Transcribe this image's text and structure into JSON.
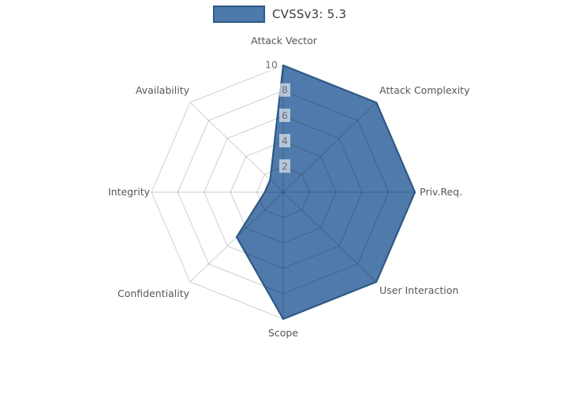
{
  "legend": {
    "label": "CVSSv3: 5.3",
    "swatch_color": "#4d79ab",
    "swatch_border_color": "#2e5984"
  },
  "chart_data": {
    "type": "radar",
    "title": "",
    "categories": [
      "Attack Vector",
      "Attack Complexity",
      "Priv.Req.",
      "User Interaction",
      "Scope",
      "Confidentiality",
      "Integrity",
      "Availability"
    ],
    "series": [
      {
        "name": "CVSSv3: 5.3",
        "values": [
          10,
          10,
          10,
          10,
          10,
          5,
          1.4,
          1.4
        ]
      }
    ],
    "radial_ticks": [
      2,
      4,
      6,
      8,
      10
    ],
    "radial_range": [
      0,
      10
    ],
    "grid": "on",
    "legend_position": "top",
    "fill_color": "#4a76a8",
    "edge_color": "#2e5984",
    "grid_color": "rgba(0,0,0,0.16)",
    "tick_label_color": "#6f6f6f",
    "tick_label_bg": "rgba(255,255,255,0.58)",
    "category_label_color": "#565656"
  }
}
